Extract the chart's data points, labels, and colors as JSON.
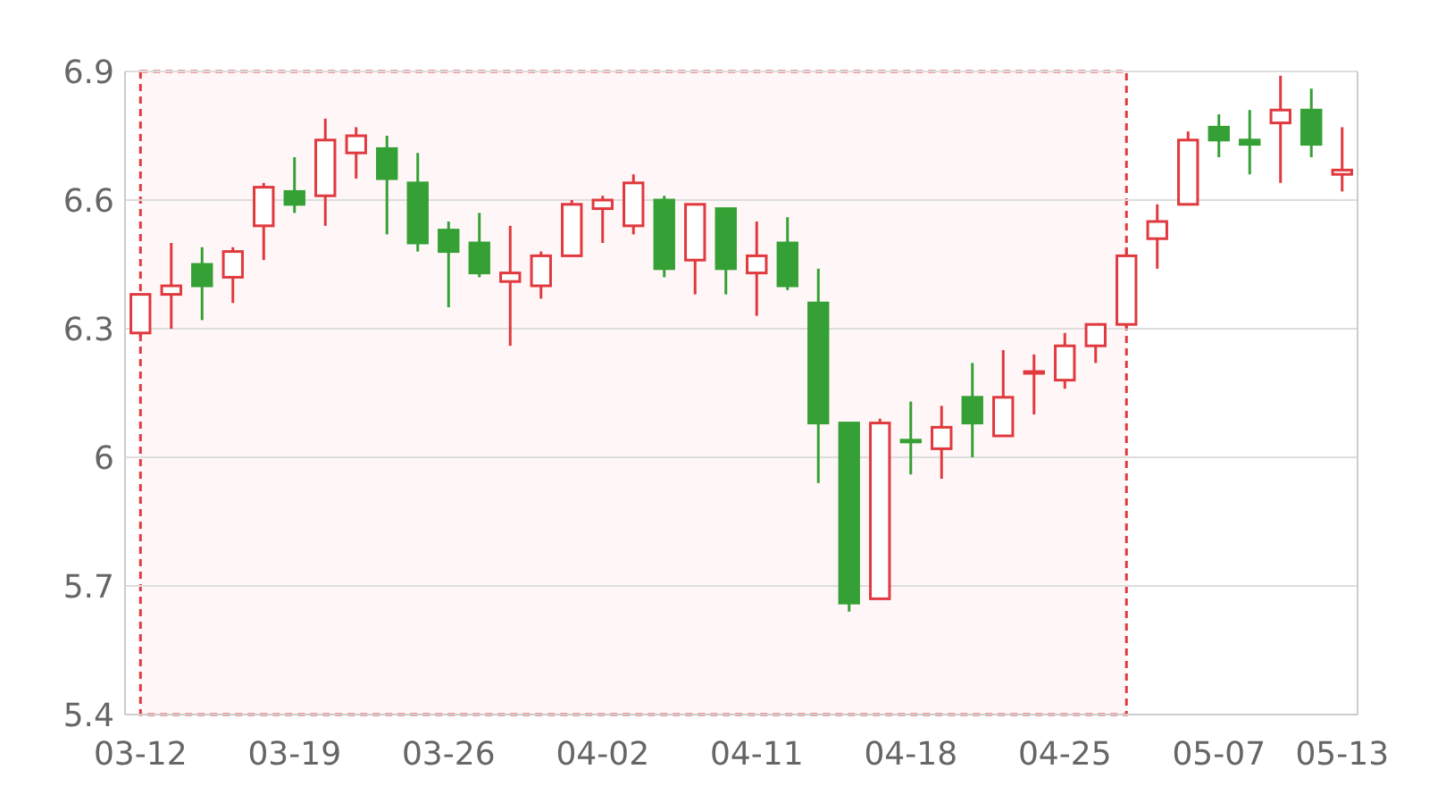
{
  "chart_data": {
    "type": "candlestick",
    "categories": [
      "03-12",
      null,
      null,
      null,
      null,
      "03-19",
      null,
      null,
      null,
      null,
      "03-26",
      null,
      null,
      null,
      null,
      "04-02",
      null,
      null,
      null,
      null,
      "04-11",
      null,
      null,
      null,
      null,
      "04-18",
      null,
      null,
      null,
      null,
      "04-25",
      null,
      null,
      null,
      null,
      "05-07",
      null,
      null,
      null,
      "05-13"
    ],
    "ohlc": [
      [
        6.29,
        6.38,
        6.28,
        6.38
      ],
      [
        6.38,
        6.5,
        6.3,
        6.4
      ],
      [
        6.45,
        6.49,
        6.32,
        6.4
      ],
      [
        6.42,
        6.49,
        6.36,
        6.48
      ],
      [
        6.54,
        6.64,
        6.46,
        6.63
      ],
      [
        6.62,
        6.7,
        6.57,
        6.59
      ],
      [
        6.61,
        6.79,
        6.54,
        6.74
      ],
      [
        6.71,
        6.77,
        6.65,
        6.75
      ],
      [
        6.72,
        6.75,
        6.52,
        6.65
      ],
      [
        6.64,
        6.71,
        6.48,
        6.5
      ],
      [
        6.53,
        6.55,
        6.35,
        6.48
      ],
      [
        6.5,
        6.57,
        6.42,
        6.43
      ],
      [
        6.41,
        6.54,
        6.26,
        6.43
      ],
      [
        6.4,
        6.48,
        6.37,
        6.47
      ],
      [
        6.47,
        6.6,
        6.47,
        6.59
      ],
      [
        6.58,
        6.61,
        6.5,
        6.6
      ],
      [
        6.54,
        6.66,
        6.52,
        6.64
      ],
      [
        6.6,
        6.61,
        6.42,
        6.44
      ],
      [
        6.46,
        6.59,
        6.38,
        6.59
      ],
      [
        6.58,
        6.58,
        6.38,
        6.44
      ],
      [
        6.43,
        6.55,
        6.33,
        6.47
      ],
      [
        6.5,
        6.56,
        6.39,
        6.4
      ],
      [
        6.36,
        6.44,
        5.94,
        6.08
      ],
      [
        6.08,
        6.08,
        5.64,
        5.66
      ],
      [
        5.67,
        6.09,
        5.67,
        6.08
      ],
      [
        6.04,
        6.13,
        5.96,
        6.04
      ],
      [
        6.02,
        6.12,
        5.95,
        6.07
      ],
      [
        6.14,
        6.22,
        6,
        6.08
      ],
      [
        6.05,
        6.25,
        6.05,
        6.14
      ],
      [
        6.2,
        6.24,
        6.1,
        6.2
      ],
      [
        6.18,
        6.29,
        6.16,
        6.26
      ],
      [
        6.26,
        6.31,
        6.22,
        6.31
      ],
      [
        6.31,
        6.49,
        6.3,
        6.47
      ],
      [
        6.51,
        6.59,
        6.44,
        6.55
      ],
      [
        6.59,
        6.76,
        6.59,
        6.74
      ],
      [
        6.77,
        6.8,
        6.7,
        6.74
      ],
      [
        6.74,
        6.81,
        6.66,
        6.73
      ],
      [
        6.78,
        6.89,
        6.64,
        6.81
      ],
      [
        6.81,
        6.86,
        6.7,
        6.73
      ],
      [
        6.66,
        6.77,
        6.62,
        6.67
      ]
    ],
    "colors": [
      "#e0393e",
      "#e0393e",
      "#35a035",
      "#e0393e",
      "#e0393e",
      "#35a035",
      "#e0393e",
      "#e0393e",
      "#35a035",
      "#35a035",
      "#35a035",
      "#35a035",
      "#e0393e",
      "#e0393e",
      "#e0393e",
      "#e0393e",
      "#e0393e",
      "#35a035",
      "#e0393e",
      "#35a035",
      "#e0393e",
      "#35a035",
      "#35a035",
      "#35a035",
      "#e0393e",
      "#35a035",
      "#e0393e",
      "#35a035",
      "#e0393e",
      "#e0393e",
      "#e0393e",
      "#e0393e",
      "#e0393e",
      "#e0393e",
      "#e0393e",
      "#35a035",
      "#35a035",
      "#e0393e",
      "#35a035",
      "#e0393e"
    ],
    "ylim": [
      5.4,
      6.9
    ],
    "yticks": [
      5.4,
      5.7,
      6,
      6.3,
      6.6,
      6.9
    ],
    "grid": "y"
  }
}
